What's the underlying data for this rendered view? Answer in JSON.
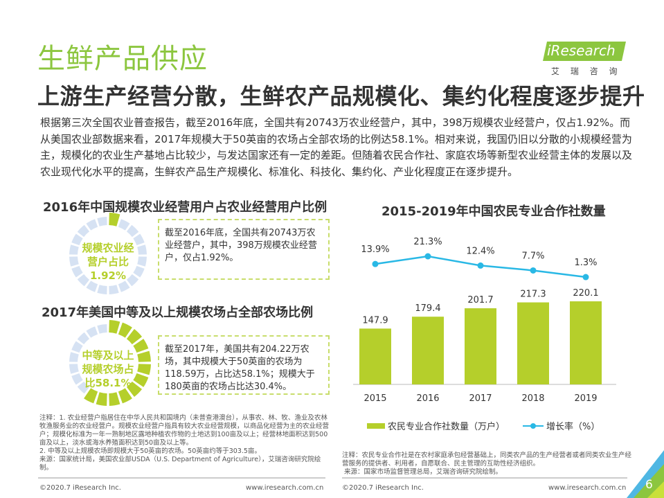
{
  "header": {
    "title": "生鲜产品供应",
    "subtitle": "上游生产经营分散，生鲜农产品规模化、集约化程度逐步提升",
    "logo_text": "iResearch",
    "logo_sub": "艾 瑞 咨 询"
  },
  "intro": "根据第三次全国农业普查报告，截至2016年底，全国共有20743万农业经营户，其中，398万规模农业经营户，仅占1.92%。而从美国农业部数据来看，2017年规模大于50英亩的农场占全部农场的比例达58.1%。相对来说，我国仍旧以分散的小规模经营为主，规模化的农业生产基地占比较少，与发达国家还有一定的差距。但随着农民合作社、家庭农场等新型农业经营主体的发展以及农业现代化水平的提高，生鲜农产品生产规模化、标准化、科技化、集约化、产业化程度正在逐步提升。",
  "donut1": {
    "title": "2016年中国规模农业经营用户占农业经营用户比例",
    "label": "规模农业经营户占比1.92%",
    "percent": 1.92,
    "text": "截至2016年底，全国共有20743万农业经营户，其中，398万规模农业经营户，仅占1.92%。"
  },
  "donut2": {
    "title": "2017年美国中等及以上规模农场占全部农场比例",
    "label": "中等及以上规模农场占比58.1%",
    "percent": 58.1,
    "text": "截至2017年，美国共有204.22万农场，其中规模大于50英亩的农场为118.59万，占比达58.1%；规模大于180英亩的农场占比达30.4%。"
  },
  "colors": {
    "green": "#b5cf2b",
    "ring": "#d6e2f3",
    "line": "#29b8e5",
    "title_green": "#8cc63f"
  },
  "left_notes": [
    "注释：1. 农业经营户指居住在中华人民共和国境内（未普查港澳台），从事农、林、牧、渔业及农林牧渔服务业的农业经营户。规模农业经营户指具有较大农业经营规模，以商品化经营为主的农业经营户；规模化标准为一年一熟制地区露地种植农作物的土地达到100亩及以上；经营林地面积达到500亩及以上，淡水或海水养殖面积达到50亩及以上等。",
    "2. 中等及以上规模农场即规模大于50英亩的农场。50英亩约等于303.5亩。",
    "来源：国家统计局，美国农业部USDA（U.S. Department of Agriculture），艾瑞咨询研究院绘制。"
  ],
  "right_notes": [
    "注释：农民专业合作社是在农村家庭承包经营基础上，同类农产品的生产经营者或者同类农业生产经营服务的提供者、利用者，自愿联合、民主管理的互助性经济组织。",
    "来源：国家市场监督管理总局，艾瑞咨询研究院绘制。"
  ],
  "footer": {
    "copyright": "©2020.7 iResearch Inc.",
    "url": "www.iresearch.com.cn",
    "page": "6"
  },
  "chart_data": {
    "type": "bar+line",
    "title": "2015-2019年中国农民专业合作社数量",
    "categories": [
      "2015",
      "2016",
      "2017",
      "2018",
      "2019"
    ],
    "series": [
      {
        "name": "农民专业合作社数量（万户）",
        "type": "bar",
        "values": [
          147.9,
          179.4,
          201.7,
          217.3,
          220.1
        ],
        "labels": [
          "147.9",
          "179.4",
          "201.7",
          "217.3",
          "220.1"
        ]
      },
      {
        "name": "增长率（%）",
        "type": "line",
        "values": [
          13.9,
          21.3,
          12.4,
          7.7,
          1.3
        ],
        "labels": [
          "13.9%",
          "21.3%",
          "12.4%",
          "7.7%",
          "1.3%"
        ]
      }
    ],
    "legend": "bottom"
  }
}
